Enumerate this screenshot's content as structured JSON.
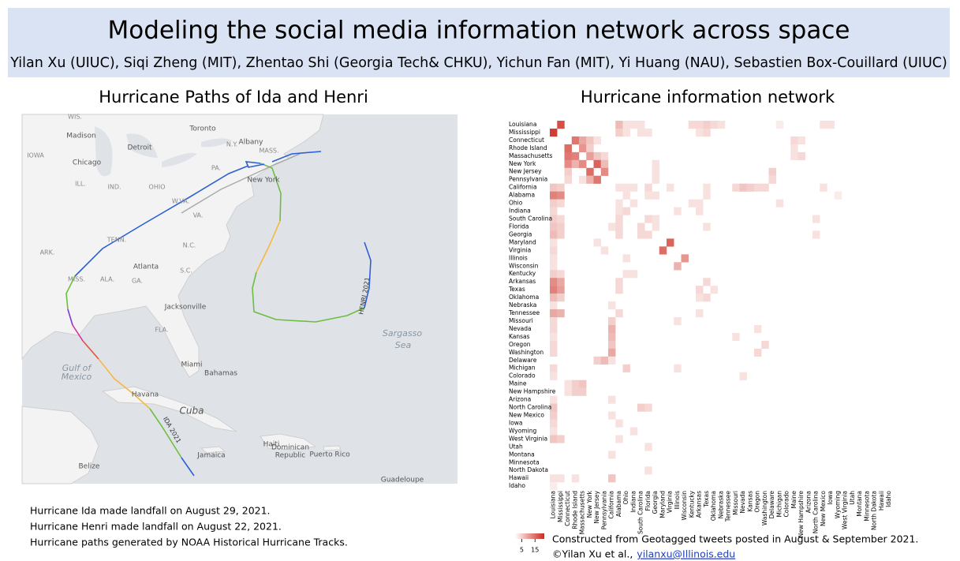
{
  "header": {
    "title": "Modeling the social media information network across space",
    "authors": "Yilan Xu (UIUC), Siqi Zheng (MIT), Zhentao Shi (Georgia Tech& CHKU), Yichun Fan (MIT), Yi Huang (NAU), Sebastien Box-Couillard (UIUC)"
  },
  "map": {
    "title": "Hurricane Paths of Ida and Henri",
    "labels": [
      "WIS.",
      "Madison",
      "Toronto",
      "N.Y.",
      "Albany",
      "MASS.",
      "IOWA",
      "Detroit",
      "Chicago",
      "PA.",
      "ILL.",
      "IND.",
      "OHIO",
      "New York",
      "W.VA.",
      "VA.",
      "TENN.",
      "N.C.",
      "ARK.",
      "Atlanta",
      "S.C.",
      "MISS.",
      "ALA.",
      "GA.",
      "Jacksonville",
      "FLA.",
      "Miami",
      "Bahamas",
      "Gulf of",
      "Mexico",
      "Havana",
      "Cuba",
      "Sargasso",
      "Sea",
      "HENRI 2021",
      "IDA 2021",
      "Haiti",
      "Dominican",
      "Republic",
      "Puerto Rico",
      "Jamaica",
      "Belize",
      "Guadeloupe"
    ],
    "notes": [
      "Hurricane Ida made landfall on August 29, 2021.",
      "Hurricane Henri made landfall on August 22, 2021.",
      "Hurricane paths generated by NOAA Historical Hurricane Tracks."
    ]
  },
  "network": {
    "type": "heatmap",
    "title": "Hurricane information network",
    "states": [
      "Louisiana",
      "Mississippi",
      "Connecticut",
      "Rhode Island",
      "Massachusetts",
      "New York",
      "New Jersey",
      "Pennsylvania",
      "California",
      "Alabama",
      "Ohio",
      "Indiana",
      "South Carolina",
      "Florida",
      "Georgia",
      "Maryland",
      "Virginia",
      "Illinois",
      "Wisconsin",
      "Kentucky",
      "Arkansas",
      "Texas",
      "Oklahoma",
      "Nebraska",
      "Tennessee",
      "Missouri",
      "Nevada",
      "Kansas",
      "Oregon",
      "Washington",
      "Delaware",
      "Michigan",
      "Colorado",
      "Maine",
      "New Hampshire",
      "Arizona",
      "North Carolina",
      "New Mexico",
      "Iowa",
      "Wyoming",
      "West Virginia",
      "Utah",
      "Montana",
      "Minnesota",
      "North Dakota",
      "Hawaii",
      "Idaho"
    ],
    "cells": [
      [
        0,
        1,
        18
      ],
      [
        0,
        9,
        7
      ],
      [
        0,
        10,
        3
      ],
      [
        0,
        11,
        3
      ],
      [
        0,
        12,
        3
      ],
      [
        0,
        19,
        4
      ],
      [
        0,
        20,
        4
      ],
      [
        0,
        21,
        5
      ],
      [
        0,
        22,
        4
      ],
      [
        0,
        23,
        3
      ],
      [
        0,
        31,
        2
      ],
      [
        0,
        37,
        3
      ],
      [
        0,
        38,
        3
      ],
      [
        1,
        0,
        20
      ],
      [
        1,
        9,
        5
      ],
      [
        1,
        10,
        3
      ],
      [
        1,
        12,
        3
      ],
      [
        1,
        13,
        3
      ],
      [
        1,
        20,
        3
      ],
      [
        1,
        21,
        4
      ],
      [
        2,
        3,
        14
      ],
      [
        2,
        4,
        9
      ],
      [
        2,
        5,
        6
      ],
      [
        2,
        6,
        3
      ],
      [
        2,
        33,
        4
      ],
      [
        2,
        34,
        3
      ],
      [
        3,
        2,
        15
      ],
      [
        3,
        4,
        11
      ],
      [
        3,
        5,
        5
      ],
      [
        3,
        33,
        3
      ],
      [
        4,
        2,
        14
      ],
      [
        4,
        3,
        13
      ],
      [
        4,
        5,
        10
      ],
      [
        4,
        6,
        6
      ],
      [
        4,
        7,
        4
      ],
      [
        4,
        33,
        3
      ],
      [
        4,
        34,
        4
      ],
      [
        5,
        2,
        12
      ],
      [
        5,
        3,
        8
      ],
      [
        5,
        4,
        12
      ],
      [
        5,
        6,
        16
      ],
      [
        5,
        7,
        7
      ],
      [
        5,
        14,
        3
      ],
      [
        6,
        2,
        5
      ],
      [
        6,
        5,
        15
      ],
      [
        6,
        7,
        12
      ],
      [
        6,
        14,
        3
      ],
      [
        6,
        30,
        5
      ],
      [
        7,
        2,
        4
      ],
      [
        7,
        4,
        3
      ],
      [
        7,
        5,
        8
      ],
      [
        7,
        6,
        14
      ],
      [
        7,
        14,
        3
      ],
      [
        7,
        30,
        4
      ],
      [
        8,
        0,
        6
      ],
      [
        8,
        1,
        5
      ],
      [
        8,
        9,
        3
      ],
      [
        8,
        10,
        3
      ],
      [
        8,
        11,
        3
      ],
      [
        8,
        13,
        4
      ],
      [
        8,
        16,
        3
      ],
      [
        8,
        21,
        3
      ],
      [
        8,
        25,
        4
      ],
      [
        8,
        26,
        6
      ],
      [
        8,
        27,
        5
      ],
      [
        8,
        28,
        4
      ],
      [
        8,
        29,
        4
      ],
      [
        8,
        37,
        3
      ],
      [
        9,
        0,
        13
      ],
      [
        9,
        1,
        12
      ],
      [
        9,
        10,
        3
      ],
      [
        9,
        13,
        3
      ],
      [
        9,
        14,
        3
      ],
      [
        9,
        21,
        3
      ],
      [
        9,
        39,
        2
      ],
      [
        10,
        0,
        5
      ],
      [
        10,
        1,
        4
      ],
      [
        10,
        9,
        3
      ],
      [
        10,
        11,
        3
      ],
      [
        10,
        19,
        3
      ],
      [
        10,
        20,
        3
      ],
      [
        10,
        31,
        3
      ],
      [
        11,
        0,
        4
      ],
      [
        11,
        9,
        3
      ],
      [
        11,
        10,
        4
      ],
      [
        11,
        17,
        3
      ],
      [
        11,
        20,
        3
      ],
      [
        12,
        0,
        5
      ],
      [
        12,
        1,
        4
      ],
      [
        12,
        9,
        4
      ],
      [
        12,
        13,
        4
      ],
      [
        12,
        14,
        3
      ],
      [
        12,
        36,
        3
      ],
      [
        13,
        0,
        6
      ],
      [
        13,
        1,
        5
      ],
      [
        13,
        8,
        3
      ],
      [
        13,
        9,
        4
      ],
      [
        13,
        12,
        4
      ],
      [
        13,
        14,
        3
      ],
      [
        13,
        21,
        3
      ],
      [
        14,
        0,
        7
      ],
      [
        14,
        1,
        5
      ],
      [
        14,
        9,
        4
      ],
      [
        14,
        12,
        4
      ],
      [
        14,
        13,
        4
      ],
      [
        14,
        36,
        3
      ],
      [
        15,
        0,
        3
      ],
      [
        15,
        16,
        16
      ],
      [
        15,
        6,
        3
      ],
      [
        16,
        0,
        4
      ],
      [
        16,
        15,
        15
      ],
      [
        16,
        7,
        3
      ],
      [
        17,
        0,
        3
      ],
      [
        17,
        18,
        11
      ],
      [
        17,
        10,
        3
      ],
      [
        18,
        17,
        8
      ],
      [
        18,
        0,
        3
      ],
      [
        19,
        0,
        5
      ],
      [
        19,
        1,
        4
      ],
      [
        19,
        10,
        3
      ],
      [
        19,
        11,
        3
      ],
      [
        20,
        0,
        12
      ],
      [
        20,
        1,
        9
      ],
      [
        20,
        9,
        4
      ],
      [
        20,
        21,
        4
      ],
      [
        21,
        0,
        13
      ],
      [
        21,
        1,
        10
      ],
      [
        21,
        9,
        4
      ],
      [
        21,
        20,
        4
      ],
      [
        21,
        22,
        3
      ],
      [
        22,
        0,
        7
      ],
      [
        22,
        1,
        5
      ],
      [
        22,
        20,
        3
      ],
      [
        22,
        21,
        4
      ],
      [
        23,
        0,
        3
      ],
      [
        23,
        8,
        3
      ],
      [
        24,
        0,
        9
      ],
      [
        24,
        1,
        8
      ],
      [
        24,
        9,
        4
      ],
      [
        24,
        20,
        3
      ],
      [
        25,
        0,
        4
      ],
      [
        25,
        8,
        5
      ],
      [
        25,
        17,
        3
      ],
      [
        26,
        0,
        4
      ],
      [
        26,
        8,
        8
      ],
      [
        26,
        28,
        3
      ],
      [
        27,
        0,
        3
      ],
      [
        27,
        8,
        7
      ],
      [
        27,
        25,
        3
      ],
      [
        28,
        0,
        4
      ],
      [
        28,
        8,
        6
      ],
      [
        28,
        29,
        4
      ],
      [
        29,
        0,
        4
      ],
      [
        29,
        8,
        9
      ],
      [
        29,
        28,
        4
      ],
      [
        30,
        6,
        5
      ],
      [
        30,
        7,
        7
      ],
      [
        30,
        8,
        3
      ],
      [
        31,
        0,
        4
      ],
      [
        31,
        10,
        5
      ],
      [
        31,
        17,
        3
      ],
      [
        32,
        0,
        3
      ],
      [
        32,
        26,
        3
      ],
      [
        33,
        3,
        5
      ],
      [
        33,
        4,
        6
      ],
      [
        33,
        2,
        3
      ],
      [
        34,
        3,
        5
      ],
      [
        34,
        4,
        5
      ],
      [
        34,
        2,
        3
      ],
      [
        35,
        0,
        3
      ],
      [
        35,
        8,
        3
      ],
      [
        36,
        0,
        6
      ],
      [
        36,
        12,
        5
      ],
      [
        36,
        13,
        4
      ],
      [
        37,
        0,
        5
      ],
      [
        37,
        8,
        3
      ],
      [
        38,
        0,
        4
      ],
      [
        38,
        9,
        3
      ],
      [
        39,
        0,
        3
      ],
      [
        39,
        11,
        3
      ],
      [
        40,
        0,
        6
      ],
      [
        40,
        1,
        5
      ],
      [
        40,
        9,
        3
      ],
      [
        41,
        13,
        3
      ],
      [
        42,
        8,
        3
      ],
      [
        44,
        13,
        3
      ],
      [
        45,
        0,
        3
      ],
      [
        45,
        1,
        3
      ],
      [
        45,
        3,
        3
      ],
      [
        45,
        8,
        6
      ],
      [
        46,
        0,
        2
      ]
    ],
    "color_range": [
      0,
      22
    ],
    "color_low": "#ffffff",
    "color_high": "#cc2a1e",
    "colorbar_ticks": [
      5,
      15
    ],
    "caption": "Constructed from Geotagged tweets posted in August & September 2021.",
    "credit": "©Yilan Xu et al.,",
    "email": "yilanxu@Illinois.edu"
  }
}
